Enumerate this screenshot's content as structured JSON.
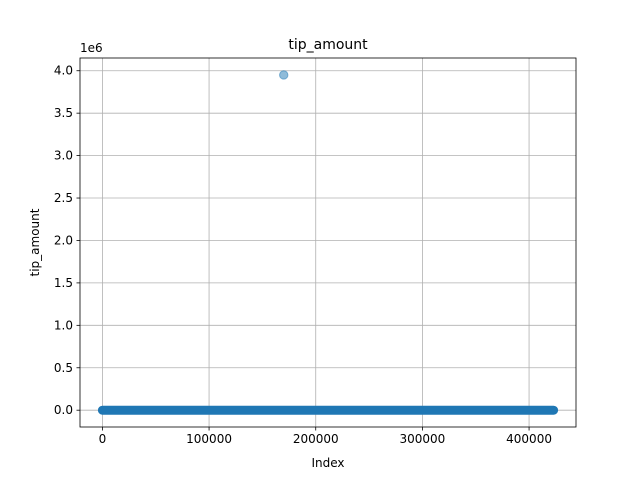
{
  "chart_data": {
    "type": "scatter",
    "title": "tip_amount",
    "xlabel": "Index",
    "ylabel": "tip_amount",
    "y_offset_text": "1e6",
    "xlim": [
      -21000,
      444000
    ],
    "ylim": [
      -198000,
      4150000
    ],
    "x_ticks": [
      0,
      100000,
      200000,
      300000,
      400000
    ],
    "x_tick_labels": [
      "0",
      "100000",
      "200000",
      "300000",
      "400000"
    ],
    "y_ticks": [
      0,
      500000,
      1000000,
      1500000,
      2000000,
      2500000,
      3000000,
      3500000,
      4000000
    ],
    "y_tick_labels": [
      "0.0",
      "0.5",
      "1.0",
      "1.5",
      "2.0",
      "2.5",
      "3.0",
      "3.5",
      "4.0"
    ],
    "grid": true,
    "marker_color": "#1f77b4",
    "marker_alpha": 0.5,
    "series": [
      {
        "dense_band": {
          "x_start": 0,
          "x_end": 423000,
          "y": 0
        },
        "points": [
          {
            "x": 170000,
            "y": 3950000
          }
        ]
      }
    ]
  }
}
